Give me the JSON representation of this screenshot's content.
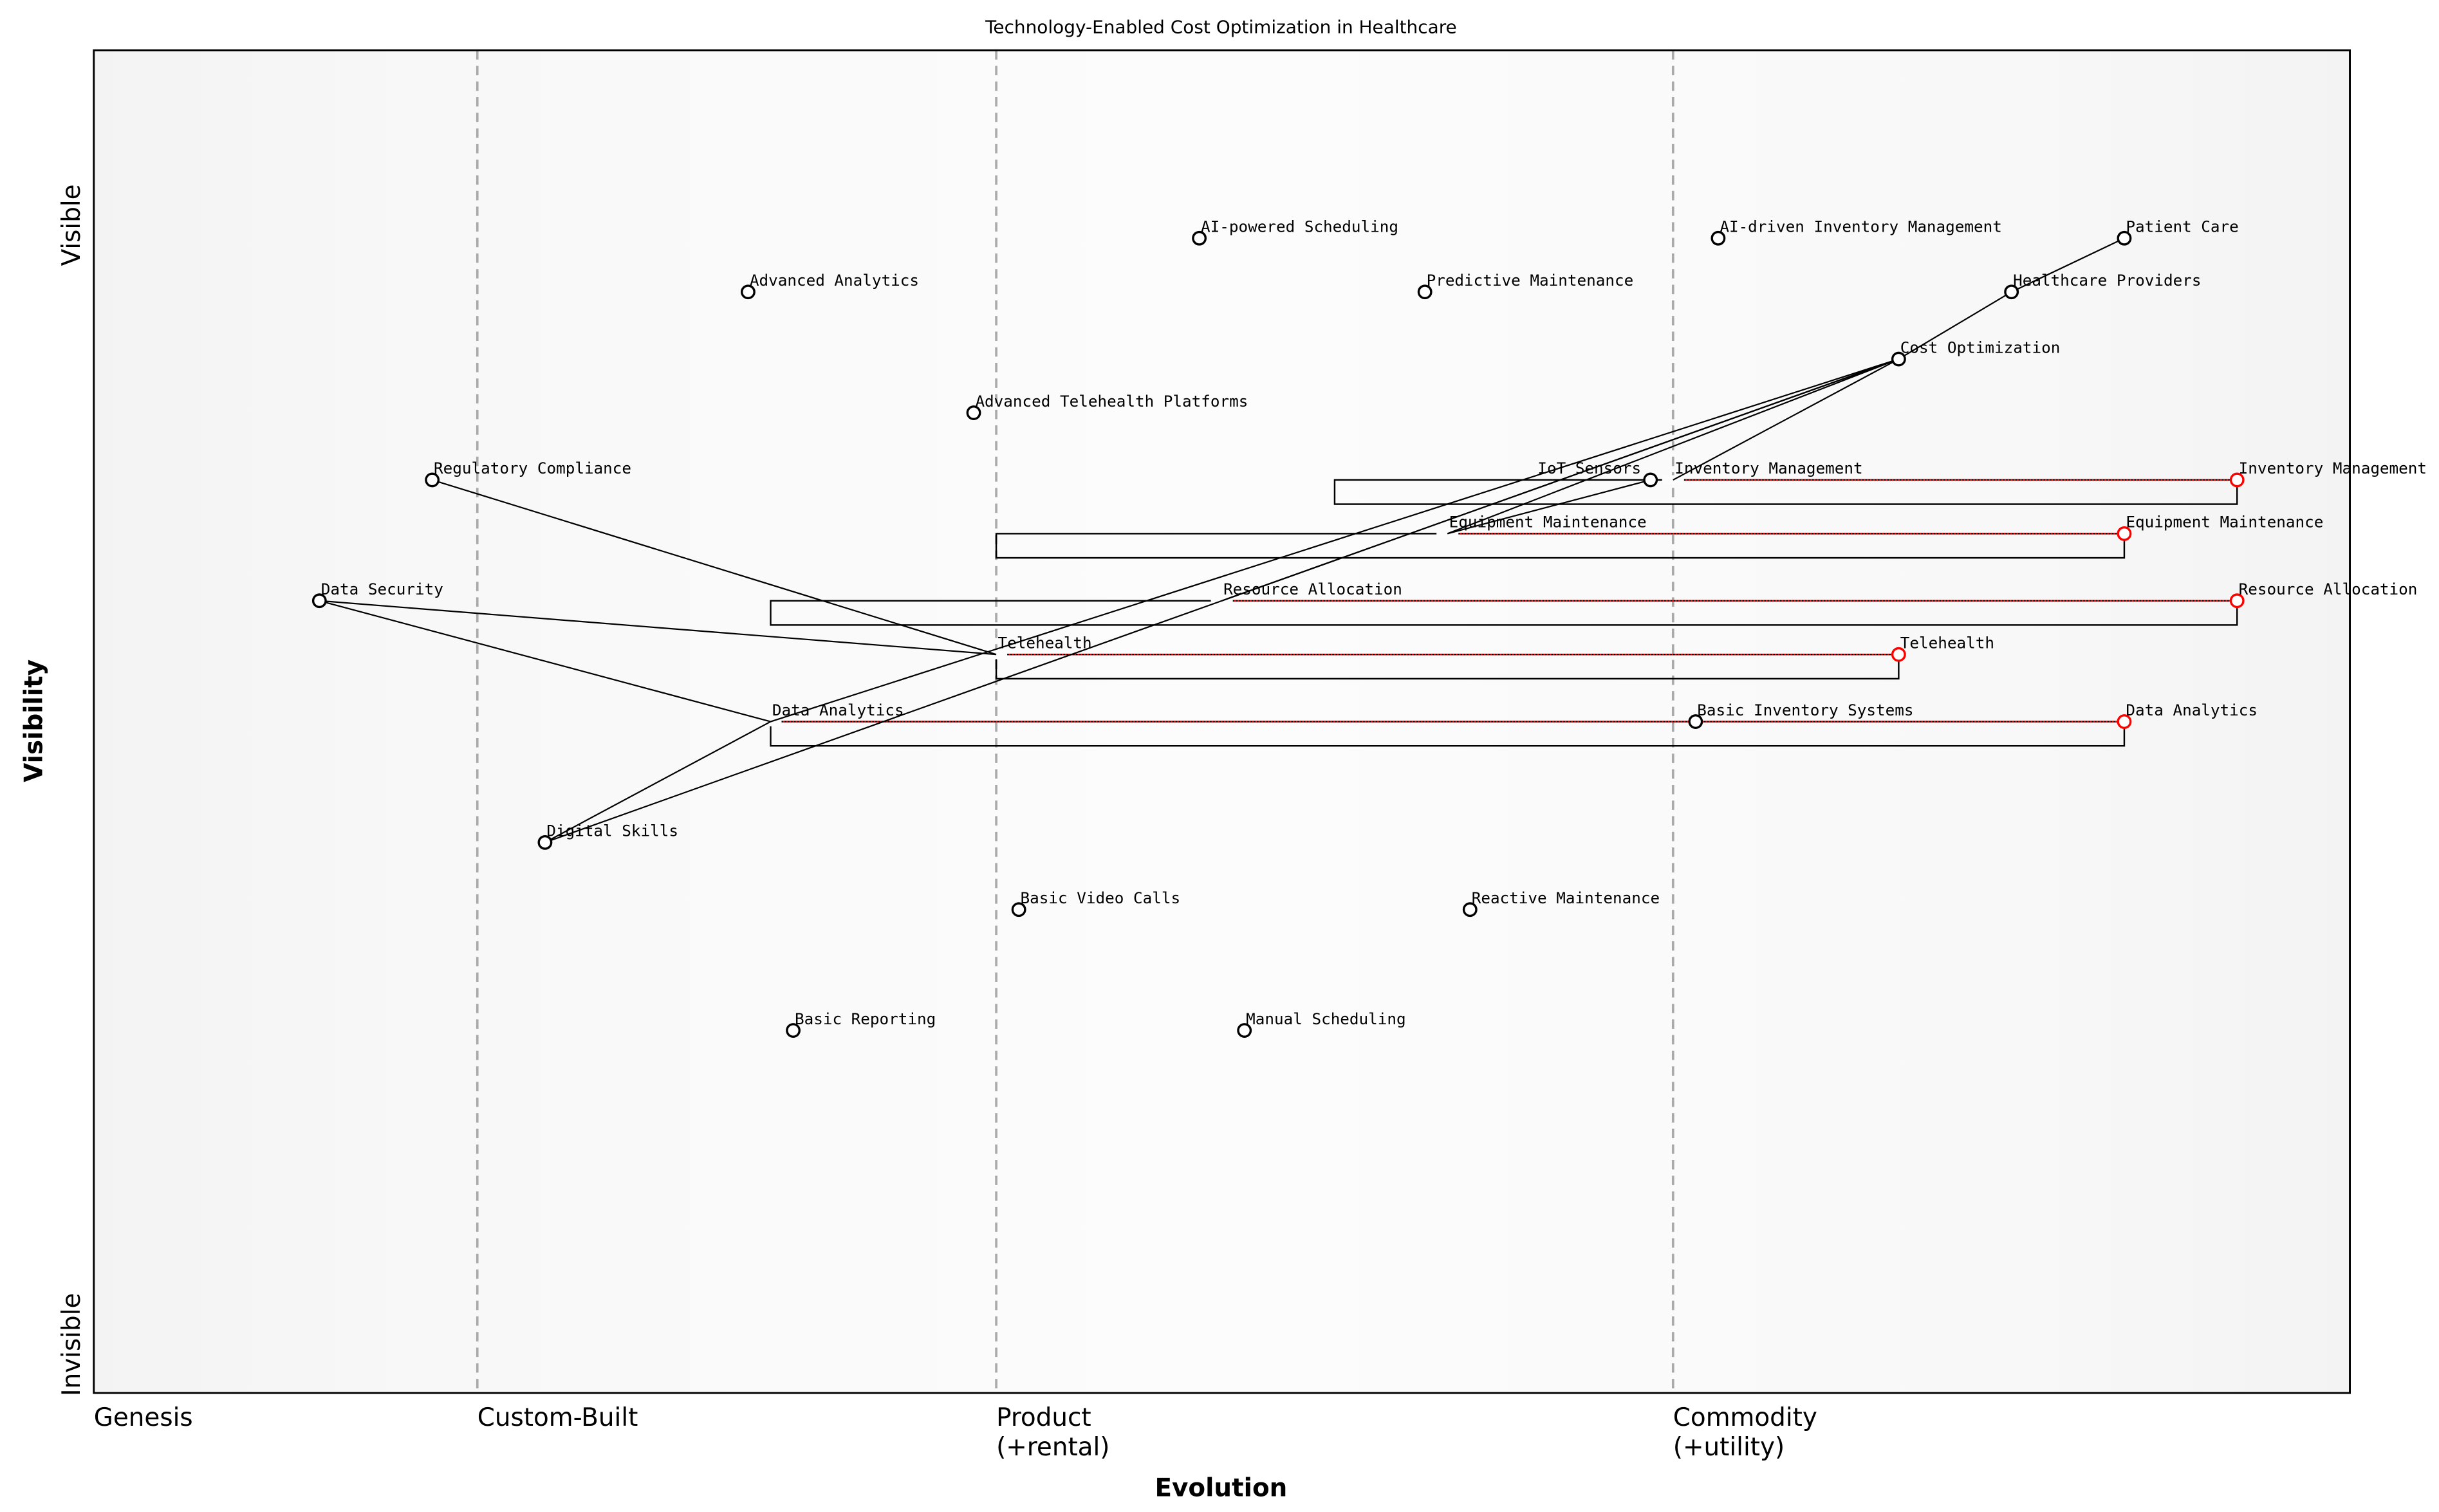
{
  "chart_data": {
    "type": "wardley-map",
    "title": "Technology-Enabled Cost Optimization in Healthcare",
    "xlabel": "Evolution",
    "ylabel": "Visibility",
    "y_top_label": "Visible",
    "y_bottom_label": "Invisible",
    "xlim": [
      0,
      1
    ],
    "ylim": [
      0,
      1
    ],
    "stages": [
      {
        "label": "Genesis",
        "start": 0.0
      },
      {
        "label": "Custom-Built",
        "start": 0.17
      },
      {
        "label": "Product\n(+rental)",
        "start": 0.4
      },
      {
        "label": "Commodity\n(+utility)",
        "start": 0.7
      }
    ],
    "colors": {
      "component": "#000000",
      "evolved": "#ff0000",
      "stage_line": "#aaaaaa",
      "background_edge": "#f4f4f4",
      "background_center": "#fbfbfb"
    },
    "components": [
      {
        "name": "Patient Care",
        "evolution": 0.9,
        "visibility": 0.86
      },
      {
        "name": "Healthcare Providers",
        "evolution": 0.85,
        "visibility": 0.82
      },
      {
        "name": "Cost Optimization",
        "evolution": 0.8,
        "visibility": 0.77
      },
      {
        "name": "AI-powered Scheduling",
        "evolution": 0.49,
        "visibility": 0.86
      },
      {
        "name": "AI-driven Inventory Management",
        "evolution": 0.72,
        "visibility": 0.86
      },
      {
        "name": "Advanced Analytics",
        "evolution": 0.29,
        "visibility": 0.82
      },
      {
        "name": "Predictive Maintenance",
        "evolution": 0.59,
        "visibility": 0.82
      },
      {
        "name": "Advanced Telehealth Platforms",
        "evolution": 0.39,
        "visibility": 0.73
      },
      {
        "name": "Regulatory Compliance",
        "evolution": 0.15,
        "visibility": 0.68
      },
      {
        "name": "IoT Sensors",
        "evolution": 0.69,
        "visibility": 0.68
      },
      {
        "name": "Data Security",
        "evolution": 0.1,
        "visibility": 0.59
      },
      {
        "name": "Basic Inventory Systems",
        "evolution": 0.71,
        "visibility": 0.5
      },
      {
        "name": "Digital Skills",
        "evolution": 0.2,
        "visibility": 0.41
      },
      {
        "name": "Basic Video Calls",
        "evolution": 0.41,
        "visibility": 0.36
      },
      {
        "name": "Reactive Maintenance",
        "evolution": 0.61,
        "visibility": 0.36
      },
      {
        "name": "Basic Reporting",
        "evolution": 0.31,
        "visibility": 0.27
      },
      {
        "name": "Manual Scheduling",
        "evolution": 0.51,
        "visibility": 0.27
      }
    ],
    "evolving": [
      {
        "name": "Inventory Management",
        "evolution": 0.7,
        "visibility": 0.68,
        "evolved_to": 0.95,
        "pipeline_start": 0.55
      },
      {
        "name": "Equipment Maintenance",
        "evolution": 0.6,
        "visibility": 0.64,
        "evolved_to": 0.9,
        "pipeline_start": 0.4
      },
      {
        "name": "Resource Allocation",
        "evolution": 0.5,
        "visibility": 0.59,
        "evolved_to": 0.95,
        "pipeline_start": 0.3
      },
      {
        "name": "Telehealth",
        "evolution": 0.4,
        "visibility": 0.55,
        "evolved_to": 0.8,
        "pipeline_start": 0.4
      },
      {
        "name": "Data Analytics",
        "evolution": 0.3,
        "visibility": 0.5,
        "evolved_to": 0.9,
        "pipeline_start": 0.3
      }
    ],
    "links": [
      [
        "Patient Care",
        "Healthcare Providers"
      ],
      [
        "Healthcare Providers",
        "Cost Optimization"
      ],
      [
        "Cost Optimization",
        "Inventory Management"
      ],
      [
        "Cost Optimization",
        "Equipment Maintenance"
      ],
      [
        "Cost Optimization",
        "Resource Allocation"
      ],
      [
        "Cost Optimization",
        "Data Analytics"
      ],
      [
        "Cost Optimization",
        "Digital Skills"
      ],
      [
        "IoT Sensors",
        "Equipment Maintenance"
      ],
      [
        "Regulatory Compliance",
        "Telehealth"
      ],
      [
        "Data Security",
        "Telehealth"
      ],
      [
        "Data Security",
        "Data Analytics"
      ],
      [
        "Data Analytics",
        "Digital Skills"
      ]
    ]
  }
}
